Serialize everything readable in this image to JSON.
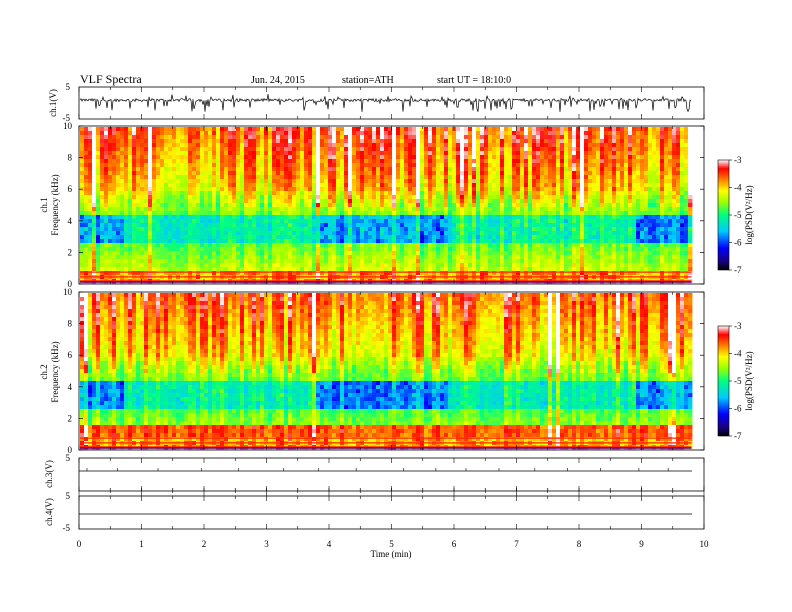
{
  "header": {
    "title": "VLF Spectra",
    "date": "Jun. 24, 2015",
    "station": "station=ATH",
    "start": "start UT =  18:10:0"
  },
  "chart_data": [
    {
      "type": "line",
      "panel": "ch.1 waveform",
      "ylabel": "ch.1(V)",
      "ylim": [
        -5,
        5
      ],
      "y_ticks": [
        "5",
        "-5"
      ],
      "x_range_min": [
        0,
        9.8
      ],
      "color": "#000000",
      "description_level": "noisy broadband signal around ~1 V with spikes down to about -3 V"
    },
    {
      "type": "heatmap",
      "panel": "ch.1 spectrogram",
      "ylabel": [
        "ch.1",
        "Frequency (kHz)"
      ],
      "ylim_khz": [
        0,
        10
      ],
      "y_ticks": [
        "0",
        "2",
        "4",
        "6",
        "8",
        "10"
      ],
      "x_range_min": [
        0,
        9.8
      ],
      "colorbar": {
        "label": "log(PSD(V²/Hz)",
        "range": [
          -7,
          -3
        ],
        "ticks": [
          "-3",
          "-4",
          "-5",
          "-6",
          "-7"
        ]
      },
      "quiet_intervals_min": [
        [
          0,
          0.7
        ],
        [
          3.75,
          5.85
        ],
        [
          8.9,
          9.8
        ]
      ],
      "features": [
        "strong low-frequency bands below 1 kHz",
        "high power (red) above 6 kHz",
        "blue minimum near 3-5 kHz"
      ]
    },
    {
      "type": "heatmap",
      "panel": "ch.2 spectrogram",
      "ylabel": [
        "ch.2",
        "Frequency (kHz)"
      ],
      "ylim_khz": [
        0,
        10
      ],
      "y_ticks": [
        "0",
        "2",
        "4",
        "6",
        "8",
        "10"
      ],
      "x_range_min": [
        0,
        9.8
      ],
      "colorbar": {
        "label": "log(PSD(V²/Hz)",
        "range": [
          -7,
          -3
        ],
        "ticks": [
          "-3",
          "-4",
          "-5",
          "-6",
          "-7"
        ]
      },
      "quiet_intervals_min": [
        [
          0,
          0.7
        ],
        [
          3.75,
          5.85
        ],
        [
          8.9,
          9.8
        ]
      ],
      "features": [
        "red band near 1-1.5 kHz",
        "high power above 6 kHz",
        "blue minimum near 3.5-5 kHz"
      ]
    },
    {
      "type": "line",
      "panel": "ch.3 waveform",
      "ylabel": "ch.3(V)",
      "ylim": [
        -5,
        5
      ],
      "y_ticks": [
        "5"
      ],
      "x_range_min": [
        0,
        9.8
      ],
      "level_v": 0
    },
    {
      "type": "line",
      "panel": "ch.4 waveform",
      "ylabel": "ch.4(V)",
      "ylim": [
        -5,
        5
      ],
      "y_ticks": [
        "5",
        "-5"
      ],
      "x_range_min": [
        0,
        9.8
      ],
      "level_v": 0
    }
  ],
  "x_axis": {
    "label": "Time (min)",
    "range": [
      0,
      10
    ],
    "ticks": [
      "0",
      "1",
      "2",
      "3",
      "4",
      "5",
      "6",
      "7",
      "8",
      "9",
      "10"
    ]
  }
}
